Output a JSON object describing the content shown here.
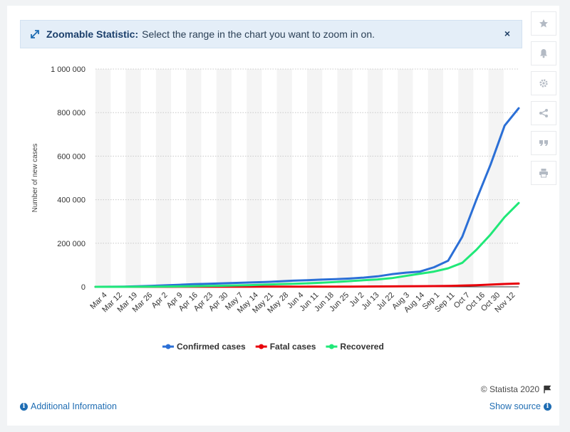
{
  "banner": {
    "title": "Zoomable Statistic:",
    "message": "Select the range in the chart you want to zoom in on.",
    "close": "×"
  },
  "toolbar": [
    "star-icon",
    "bell-icon",
    "gear-icon",
    "share-icon",
    "quote-icon",
    "print-icon"
  ],
  "footer": {
    "credit": "© Statista 2020",
    "additional_info": "Additional Information",
    "show_source": "Show source"
  },
  "colors": {
    "confirmed": "#2b6fd6",
    "fatal": "#e8000a",
    "recovered": "#20e878"
  },
  "chart_data": {
    "type": "line",
    "title": "",
    "xlabel": "",
    "ylabel": "Number of new cases",
    "ylim": [
      0,
      1000000
    ],
    "yticks": [
      0,
      200000,
      400000,
      600000,
      800000,
      1000000
    ],
    "ytick_labels": [
      "0",
      "200 000",
      "400 000",
      "600 000",
      "800 000",
      "1 000 000"
    ],
    "x_tick_labels": [
      "Mar 4",
      "Mar 12",
      "Mar 19",
      "Mar 26",
      "Apr 2",
      "Apr 9",
      "Apr 16",
      "Apr 23",
      "Apr 30",
      "May 7",
      "May 14",
      "May 21",
      "May 28",
      "Jun 4",
      "Jun 11",
      "Jun 18",
      "Jun 25",
      "Jul 2",
      "Jul 13",
      "Jul 22",
      "Aug 3",
      "Aug 14",
      "Sep 1",
      "Sep 11",
      "Oct 7",
      "Oct 16",
      "Oct 30",
      "Nov 12"
    ],
    "grid": true,
    "legend_position": "bottom",
    "series": [
      {
        "name": "Confirmed cases",
        "color": "#2b6fd6",
        "values": [
          0,
          300,
          1000,
          2500,
          4500,
          7000,
          9500,
          12000,
          14000,
          16000,
          18000,
          20000,
          22000,
          25000,
          28000,
          30000,
          33000,
          35000,
          38000,
          42000,
          48000,
          58000,
          65000,
          70000,
          90000,
          120000,
          230000,
          400000,
          560000,
          740000,
          820000
        ]
      },
      {
        "name": "Fatal cases",
        "color": "#e8000a",
        "values": [
          0,
          0,
          10,
          30,
          80,
          120,
          170,
          220,
          270,
          320,
          380,
          440,
          520,
          600,
          700,
          800,
          900,
          1000,
          1100,
          1300,
          1600,
          2000,
          2400,
          2800,
          3300,
          4000,
          5500,
          7500,
          10000,
          13000,
          15000
        ]
      },
      {
        "name": "Recovered",
        "color": "#20e878",
        "values": [
          0,
          0,
          50,
          300,
          700,
          1300,
          2000,
          3000,
          4000,
          5000,
          6500,
          8000,
          10000,
          12000,
          14000,
          16000,
          19000,
          22000,
          26000,
          30000,
          34000,
          40000,
          50000,
          60000,
          70000,
          85000,
          110000,
          170000,
          240000,
          320000,
          385000
        ]
      }
    ]
  }
}
